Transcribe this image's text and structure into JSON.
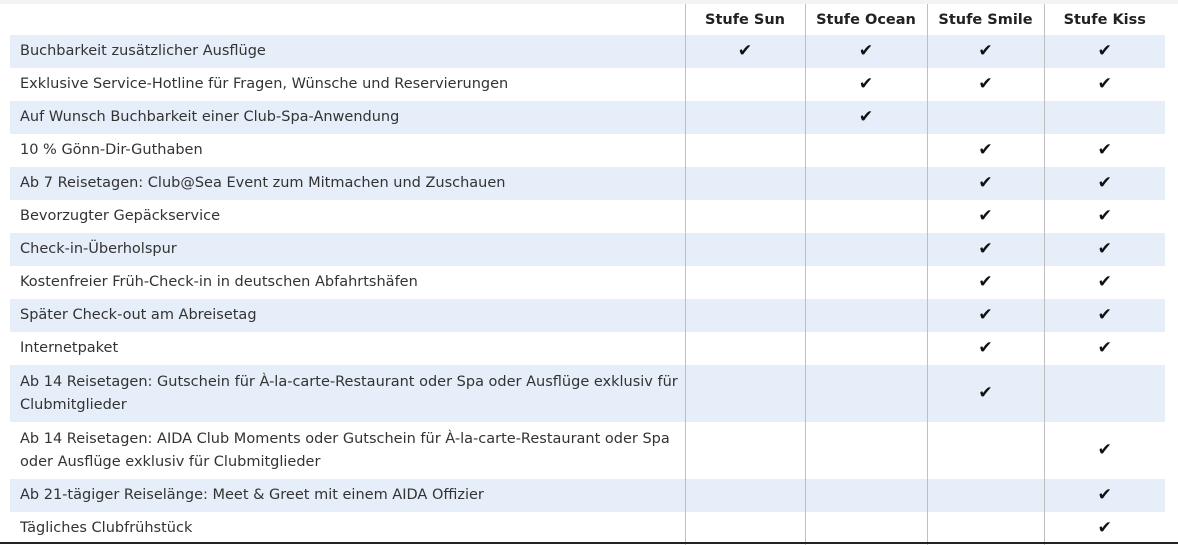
{
  "columns": [
    "Stufe Sun",
    "Stufe Ocean",
    "Stufe Smile",
    "Stufe Kiss"
  ],
  "check_glyph": "✔",
  "row_shade_color": "#e5eef9",
  "rows": [
    {
      "label": "Buchbarkeit zusätzlicher Ausflüge",
      "checks": [
        true,
        true,
        true,
        true
      ]
    },
    {
      "label": "Exklusive Service-Hotline für Fragen, Wünsche und Reservierungen",
      "checks": [
        false,
        true,
        true,
        true
      ]
    },
    {
      "label": "Auf Wunsch Buchbarkeit einer Club-Spa-Anwendung",
      "checks": [
        false,
        true,
        false,
        false
      ]
    },
    {
      "label": "10 % Gönn-Dir-Guthaben",
      "checks": [
        false,
        false,
        true,
        true
      ]
    },
    {
      "label": "Ab 7 Reisetagen: Club@Sea Event zum Mitmachen und Zuschauen",
      "checks": [
        false,
        false,
        true,
        true
      ]
    },
    {
      "label": "Bevorzugter Gepäckservice",
      "checks": [
        false,
        false,
        true,
        true
      ]
    },
    {
      "label": "Check-in-Überholspur",
      "checks": [
        false,
        false,
        true,
        true
      ]
    },
    {
      "label": "Kostenfreier Früh-Check-in in deutschen Abfahrtshäfen",
      "checks": [
        false,
        false,
        true,
        true
      ]
    },
    {
      "label": "Später Check-out am Abreisetag",
      "checks": [
        false,
        false,
        true,
        true
      ]
    },
    {
      "label": "Internetpaket",
      "checks": [
        false,
        false,
        true,
        true
      ]
    },
    {
      "label": "Ab 14 Reisetagen: Gutschein für À-la-carte-Restaurant oder Spa oder Ausflüge exklusiv für Clubmitglieder",
      "checks": [
        false,
        false,
        true,
        false
      ],
      "double": true
    },
    {
      "label": "Ab 14 Reisetagen: AIDA Club Moments oder Gutschein für À-la-carte-Restaurant oder Spa oder Ausflüge exklusiv für Clubmitglieder",
      "checks": [
        false,
        false,
        false,
        true
      ],
      "double": true
    },
    {
      "label": "Ab 21-tägiger Reiselänge: Meet & Greet mit einem AIDA Offizier",
      "checks": [
        false,
        false,
        false,
        true
      ]
    },
    {
      "label": "Tägliches Clubfrühstück",
      "checks": [
        false,
        false,
        false,
        true
      ]
    }
  ]
}
